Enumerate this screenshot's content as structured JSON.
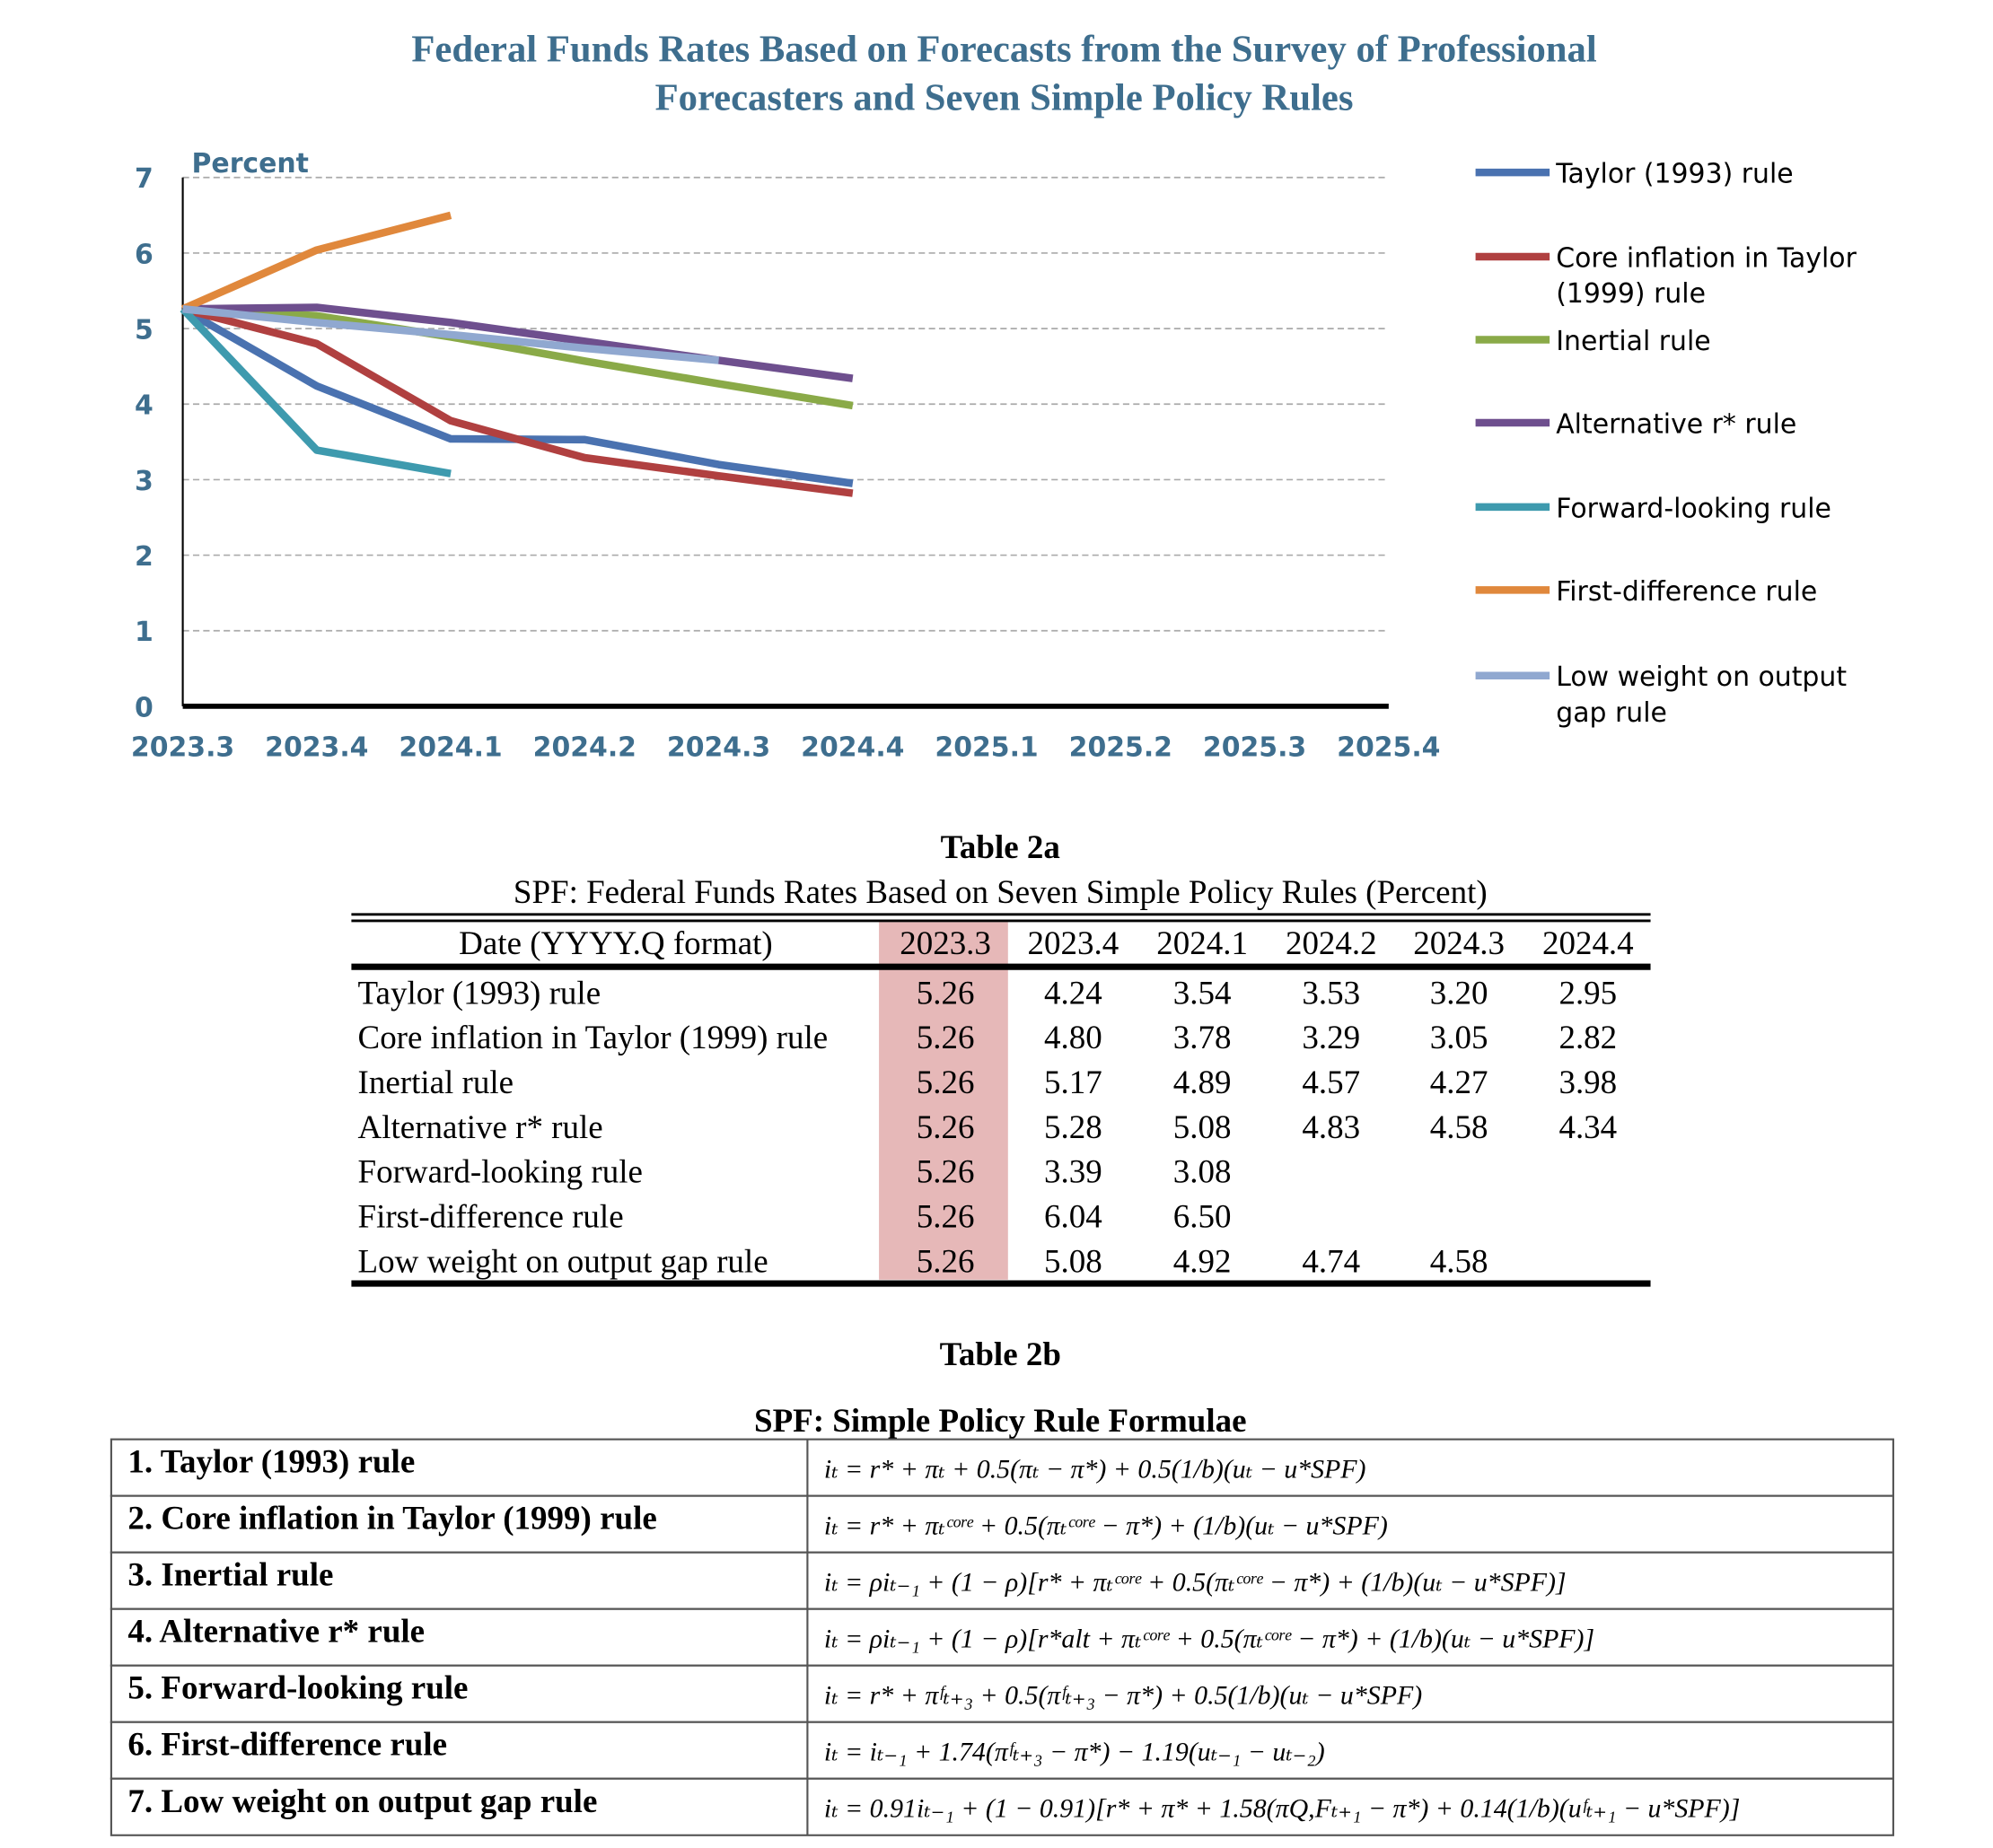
{
  "chart_data": {
    "type": "line",
    "title": [
      "Federal Funds Rates Based on Forecasts from the Survey of Professional",
      "Forecasters and Seven Simple Policy Rules"
    ],
    "y_label": "Percent",
    "categories": [
      "2023.3",
      "2023.4",
      "2024.1",
      "2024.2",
      "2024.3",
      "2024.4",
      "2025.1",
      "2025.2",
      "2025.3",
      "2025.4"
    ],
    "ylim": [
      0,
      7
    ],
    "yticks": [
      0,
      1,
      2,
      3,
      4,
      5,
      6,
      7
    ],
    "grid": true,
    "legend": "right",
    "series": [
      {
        "name": "Taylor (1993) rule",
        "color": "#4a72b0",
        "values": [
          5.26,
          4.24,
          3.54,
          3.53,
          3.2,
          2.95,
          null,
          null,
          null,
          null
        ]
      },
      {
        "name": "Core inflation in Taylor (1999) rule",
        "color": "#b04040",
        "values": [
          5.26,
          4.8,
          3.78,
          3.29,
          3.05,
          2.82,
          null,
          null,
          null,
          null
        ]
      },
      {
        "name": "Inertial rule",
        "color": "#8aaa48",
        "values": [
          5.26,
          5.17,
          4.89,
          4.57,
          4.27,
          3.98,
          null,
          null,
          null,
          null
        ]
      },
      {
        "name": "Alternative r* rule",
        "color": "#6e4f8e",
        "values": [
          5.26,
          5.28,
          5.08,
          4.83,
          4.58,
          4.34,
          null,
          null,
          null,
          null
        ]
      },
      {
        "name": "Forward-looking rule",
        "color": "#3e9aae",
        "values": [
          5.26,
          3.39,
          3.08,
          null,
          null,
          null,
          null,
          null,
          null,
          null
        ]
      },
      {
        "name": "First-difference rule",
        "color": "#e0883c",
        "values": [
          5.26,
          6.04,
          6.5,
          null,
          null,
          null,
          null,
          null,
          null,
          null
        ]
      },
      {
        "name": "Low weight on output gap rule",
        "color": "#90a8d0",
        "values": [
          5.26,
          5.08,
          4.92,
          4.74,
          4.58,
          null,
          null,
          null,
          null,
          null
        ]
      }
    ]
  },
  "table_2a": {
    "title": "Table 2a",
    "subtitle": "SPF: Federal Funds Rates Based on Seven Simple Policy Rules (Percent)",
    "header": [
      "Date (YYYY.Q format)",
      "2023.3",
      "2023.4",
      "2024.1",
      "2024.2",
      "2024.3",
      "2024.4"
    ],
    "rows": [
      [
        "Taylor (1993) rule",
        "5.26",
        "4.24",
        "3.54",
        "3.53",
        "3.20",
        "2.95"
      ],
      [
        "Core inflation in Taylor (1999) rule",
        "5.26",
        "4.80",
        "3.78",
        "3.29",
        "3.05",
        "2.82"
      ],
      [
        "Inertial rule",
        "5.26",
        "5.17",
        "4.89",
        "4.57",
        "4.27",
        "3.98"
      ],
      [
        "Alternative r* rule",
        "5.26",
        "5.28",
        "5.08",
        "4.83",
        "4.58",
        "4.34"
      ],
      [
        "Forward-looking rule",
        "5.26",
        "3.39",
        "3.08"
      ],
      [
        "First-difference rule",
        "5.26",
        "6.04",
        "6.50"
      ],
      [
        "Low weight on output gap rule",
        "5.26",
        "5.08",
        "4.92",
        "4.74",
        "4.58"
      ]
    ]
  },
  "table_2b": {
    "title": "Table 2b",
    "subtitle": "SPF: Simple Policy Rule Formulae",
    "rows": [
      [
        "1. Taylor (1993) rule",
        "iₜ = r* + πₜ + 0.5(πₜ − π*) + 0.5(1/b)(uₜ − u*SPF)"
      ],
      [
        "2. Core inflation in Taylor (1999) rule",
        "iₜ = r* + πₜᶜᵒʳᵉ + 0.5(πₜᶜᵒʳᵉ − π*) + (1/b)(uₜ − u*SPF)"
      ],
      [
        "3. Inertial rule",
        "iₜ = ρiₜ₋₁ + (1 − ρ)[r* + πₜᶜᵒʳᵉ + 0.5(πₜᶜᵒʳᵉ − π*) + (1/b)(uₜ − u*SPF)]"
      ],
      [
        "4. Alternative r* rule",
        "iₜ = ρiₜ₋₁ + (1 − ρ)[r*alt + πₜᶜᵒʳᵉ + 0.5(πₜᶜᵒʳᵉ − π*) + (1/b)(uₜ − u*SPF)]"
      ],
      [
        "5. Forward-looking rule",
        "iₜ = r* + πᶠₜ₊₃ + 0.5(πᶠₜ₊₃ − π*) + 0.5(1/b)(uₜ − u*SPF)"
      ],
      [
        "6. First-difference rule",
        "iₜ = iₜ₋₁ + 1.74(πᶠₜ₊₃ − π*) − 1.19(uₜ₋₁ − uₜ₋₂)"
      ],
      [
        "7. Low weight on output gap rule",
        "iₜ = 0.91iₜ₋₁ + (1 − 0.91)[r* + π* + 1.58(πQ,Fₜ₊₁ − π*) + 0.14(1/b)(uᶠₜ₊₁ − u*SPF)]"
      ]
    ]
  }
}
